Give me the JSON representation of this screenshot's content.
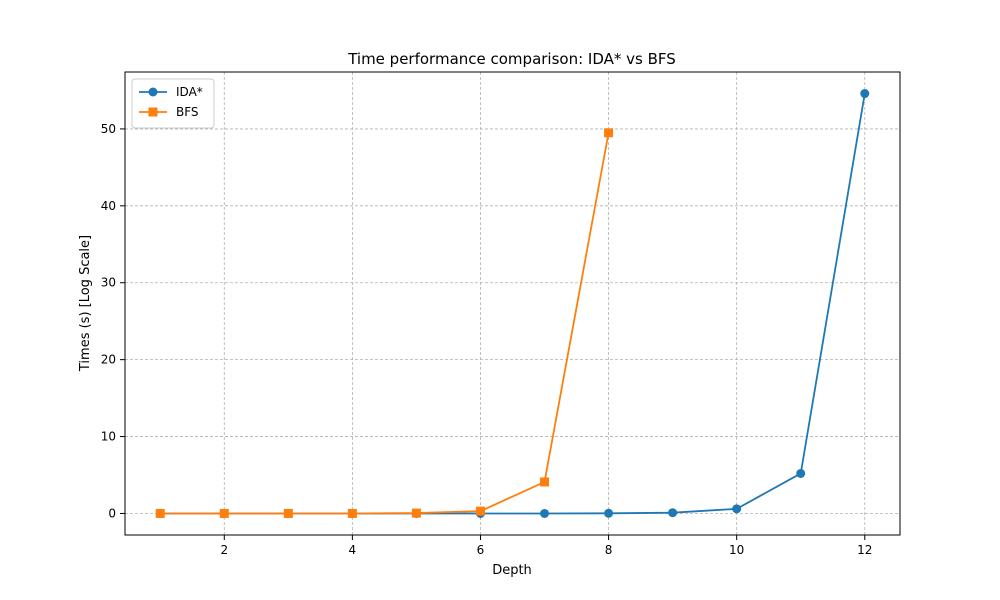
{
  "chart_data": {
    "type": "line",
    "title": "Time performance comparison: IDA* vs BFS",
    "xlabel": "Depth",
    "ylabel": "Times (s) [Log Scale]",
    "xlim": [
      0.45,
      12.55
    ],
    "ylim": [
      -2.8,
      57.4
    ],
    "xticks": [
      2,
      4,
      6,
      8,
      10,
      12
    ],
    "yticks": [
      0,
      10,
      20,
      30,
      40,
      50
    ],
    "grid": true,
    "legend_position": "top-left",
    "series": [
      {
        "name": "IDA*",
        "color": "#1f77b4",
        "marker": "circle",
        "x": [
          1,
          2,
          3,
          4,
          5,
          6,
          7,
          8,
          9,
          10,
          11,
          12
        ],
        "y": [
          0,
          0,
          0,
          0,
          0,
          0,
          0,
          0.02,
          0.1,
          0.6,
          5.2,
          54.6
        ]
      },
      {
        "name": "BFS",
        "color": "#ff7f0e",
        "marker": "square",
        "x": [
          1,
          2,
          3,
          4,
          5,
          6,
          7,
          8
        ],
        "y": [
          0,
          0,
          0,
          0,
          0.05,
          0.3,
          4.1,
          49.5
        ]
      }
    ]
  }
}
